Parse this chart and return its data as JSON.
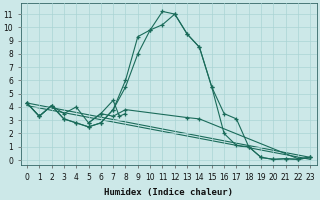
{
  "xlabel": "Humidex (Indice chaleur)",
  "bg_color": "#cce8e8",
  "grid_color": "#aad4d4",
  "line_color": "#1a6b5a",
  "xlim": [
    -0.5,
    23.5
  ],
  "ylim": [
    -0.4,
    11.8
  ],
  "xticks": [
    0,
    1,
    2,
    3,
    4,
    5,
    6,
    7,
    8,
    9,
    10,
    11,
    12,
    13,
    14,
    15,
    16,
    17,
    18,
    19,
    20,
    21,
    22,
    23
  ],
  "yticks": [
    0,
    1,
    2,
    3,
    4,
    5,
    6,
    7,
    8,
    9,
    10,
    11
  ],
  "main_curve_x": [
    0,
    1,
    2,
    3,
    4,
    5,
    6,
    7,
    8,
    9,
    10,
    11,
    12,
    13,
    14,
    15,
    16,
    17,
    18,
    19,
    20,
    21,
    22,
    23
  ],
  "main_curve_y": [
    4.3,
    3.3,
    4.1,
    3.1,
    2.8,
    2.5,
    2.8,
    3.8,
    6.0,
    9.3,
    9.8,
    11.2,
    11.0,
    9.5,
    8.5,
    5.5,
    2.0,
    1.1,
    1.0,
    0.2,
    0.05,
    0.1,
    0.05,
    0.2
  ],
  "peak_sub_curve_x": [
    0,
    1,
    2,
    3,
    4,
    5,
    6,
    7,
    8,
    9,
    10,
    11,
    12,
    13,
    14,
    15,
    16,
    17,
    18,
    19,
    20,
    21,
    22,
    23
  ],
  "peak_sub_curve_y": [
    4.3,
    3.3,
    4.1,
    3.1,
    2.8,
    2.5,
    2.8,
    3.8,
    5.5,
    8.0,
    9.8,
    10.2,
    11.0,
    9.5,
    8.5,
    5.5,
    3.5,
    3.1,
    1.0,
    0.2,
    0.05,
    0.1,
    0.05,
    0.2
  ],
  "lower_curve_x": [
    0,
    1,
    2,
    3,
    4,
    5,
    6,
    7,
    8,
    13,
    14,
    22,
    23
  ],
  "lower_curve_y": [
    4.3,
    3.3,
    4.1,
    3.5,
    4.0,
    2.8,
    3.5,
    3.3,
    3.8,
    3.2,
    3.1,
    0.1,
    0.2
  ],
  "zigzag_x": [
    5,
    6,
    7,
    7.5,
    8
  ],
  "zigzag_y": [
    2.8,
    3.5,
    4.5,
    3.3,
    3.5
  ],
  "trend1_x": [
    0,
    23
  ],
  "trend1_y": [
    4.3,
    0.2
  ],
  "trend2_x": [
    0,
    23
  ],
  "trend2_y": [
    4.1,
    0.05
  ]
}
